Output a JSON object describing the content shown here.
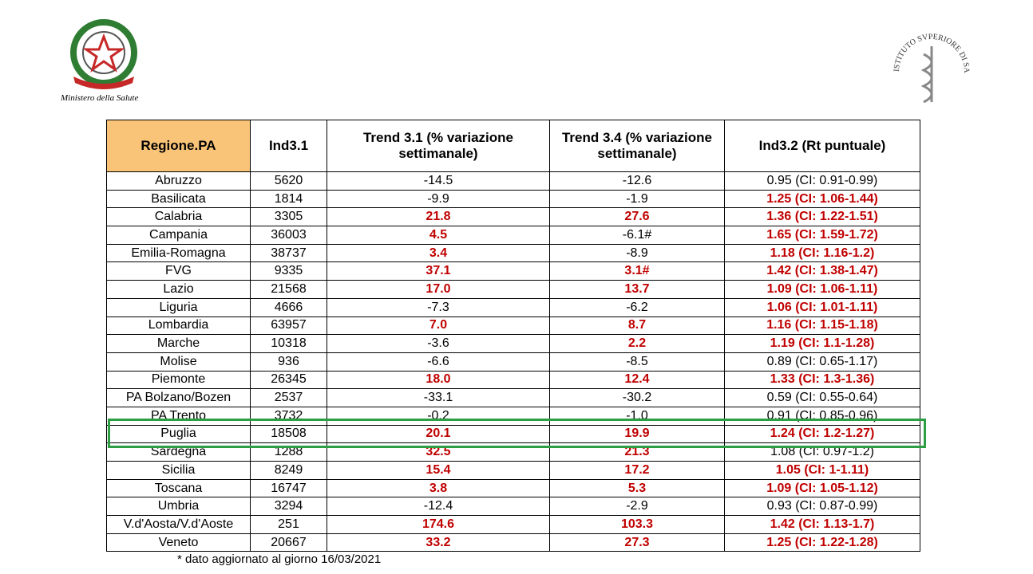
{
  "header": {
    "left_logo_caption": "Ministero della Salute",
    "right_logo_caption": "ISTITUTO SVPERIORE DI SANITÀ"
  },
  "table": {
    "columns": [
      "Regione.PA",
      "Ind3.1",
      "Trend 3.1 (% variazione settimanale)",
      "Trend 3.4 (% variazione settimanale)",
      "Ind3.2 (Rt puntuale)"
    ],
    "rows": [
      [
        "Abruzzo",
        "5620",
        "-14.5",
        "-12.6",
        "0.95 (CI: 0.91-0.99)"
      ],
      [
        "Basilicata",
        "1814",
        "-9.9",
        "-1.9",
        "1.25 (CI: 1.06-1.44)"
      ],
      [
        "Calabria",
        "3305",
        "21.8",
        "27.6",
        "1.36 (CI: 1.22-1.51)"
      ],
      [
        "Campania",
        "36003",
        "4.5",
        "-6.1#",
        "1.65 (CI: 1.59-1.72)"
      ],
      [
        "Emilia-Romagna",
        "38737",
        "3.4",
        "-8.9",
        "1.18 (CI: 1.16-1.2)"
      ],
      [
        "FVG",
        "9335",
        "37.1",
        "3.1#",
        "1.42 (CI: 1.38-1.47)"
      ],
      [
        "Lazio",
        "21568",
        "17.0",
        "13.7",
        "1.09 (CI: 1.06-1.11)"
      ],
      [
        "Liguria",
        "4666",
        "-7.3",
        "-6.2",
        "1.06 (CI: 1.01-1.11)"
      ],
      [
        "Lombardia",
        "63957",
        "7.0",
        "8.7",
        "1.16 (CI: 1.15-1.18)"
      ],
      [
        "Marche",
        "10318",
        "-3.6",
        "2.2",
        "1.19 (CI: 1.1-1.28)"
      ],
      [
        "Molise",
        "936",
        "-6.6",
        "-8.5",
        "0.89 (CI: 0.65-1.17)"
      ],
      [
        "Piemonte",
        "26345",
        "18.0",
        "12.4",
        "1.33 (CI: 1.3-1.36)"
      ],
      [
        "PA Bolzano/Bozen",
        "2537",
        "-33.1",
        "-30.2",
        "0.59 (CI: 0.55-0.64)"
      ],
      [
        "PA Trento",
        "3732",
        "-0.2",
        "-1.0",
        "0.91 (CI: 0.85-0.96)"
      ],
      [
        "Puglia",
        "18508",
        "20.1",
        "19.9",
        "1.24 (CI: 1.2-1.27)"
      ],
      [
        "Sardegna",
        "1288",
        "32.5",
        "21.3",
        "1.08 (CI: 0.97-1.2)"
      ],
      [
        "Sicilia",
        "8249",
        "15.4",
        "17.2",
        "1.05 (CI: 1-1.11)"
      ],
      [
        "Toscana",
        "16747",
        "3.8",
        "5.3",
        "1.09 (CI: 1.05-1.12)"
      ],
      [
        "Umbria",
        "3294",
        "-12.4",
        "-2.9",
        "0.93 (CI: 0.87-0.99)"
      ],
      [
        "V.d'Aosta/V.d'Aoste",
        "251",
        "174.6",
        "103.3",
        "1.42 (CI: 1.13-1.7)"
      ],
      [
        "Veneto",
        "20667",
        "33.2",
        "27.3",
        "1.25 (CI: 1.22-1.28)"
      ]
    ],
    "emphasis_color": "#c00000",
    "emphasis": [
      [],
      [
        4
      ],
      [
        2,
        3,
        4
      ],
      [
        2,
        4
      ],
      [
        2,
        4
      ],
      [
        2,
        3,
        4
      ],
      [
        2,
        3,
        4
      ],
      [
        4
      ],
      [
        2,
        3,
        4
      ],
      [
        3,
        4
      ],
      [],
      [
        2,
        3,
        4
      ],
      [],
      [],
      [
        2,
        3,
        4
      ],
      [
        2,
        3
      ],
      [
        2,
        3,
        4
      ],
      [
        2,
        3,
        4
      ],
      [],
      [
        2,
        3,
        4
      ],
      [
        2,
        3,
        4
      ]
    ],
    "highlighted_row": 14,
    "highlight_color": "#2e9e44"
  },
  "footnote": "* dato aggiornato al giorno 16/03/2021"
}
